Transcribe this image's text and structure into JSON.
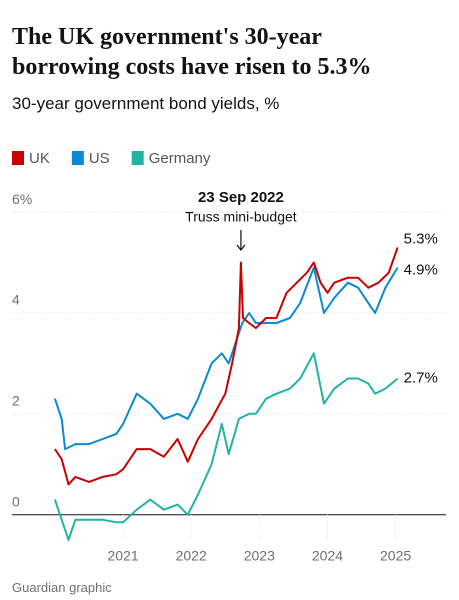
{
  "chart_data": {
    "type": "line",
    "title": "The UK government's 30-year borrowing costs have risen to 5.3%",
    "subtitle": "30-year government bond yields, %",
    "source": "Guardian graphic",
    "annotation": {
      "x": 2022.73,
      "title": "23 Sep 2022",
      "text": "Truss mini-budget"
    },
    "xlim": [
      2019.37,
      2025.74
    ],
    "xticks": [
      2021,
      2022,
      2023,
      2024,
      2025
    ],
    "ylim": [
      -0.7,
      6.2
    ],
    "yticks": [
      0,
      2,
      4,
      {
        "value": 6,
        "label": "6%"
      }
    ],
    "grid": true,
    "series": [
      {
        "name": "UK",
        "color": "#c70000",
        "end_label": "5.3%",
        "x": [
          2020.0,
          2020.1,
          2020.2,
          2020.3,
          2020.5,
          2020.7,
          2020.9,
          2021.0,
          2021.2,
          2021.4,
          2021.6,
          2021.8,
          2021.95,
          2022.1,
          2022.3,
          2022.5,
          2022.6,
          2022.7,
          2022.73,
          2022.76,
          2022.85,
          2022.95,
          2023.1,
          2023.25,
          2023.4,
          2023.55,
          2023.7,
          2023.8,
          2023.9,
          2024.0,
          2024.1,
          2024.3,
          2024.45,
          2024.6,
          2024.75,
          2024.9,
          2025.03
        ],
        "values": [
          1.3,
          1.1,
          0.6,
          0.75,
          0.65,
          0.75,
          0.8,
          0.9,
          1.3,
          1.3,
          1.15,
          1.5,
          1.05,
          1.5,
          1.9,
          2.4,
          3.0,
          3.7,
          5.0,
          3.9,
          3.8,
          3.7,
          3.9,
          3.9,
          4.4,
          4.6,
          4.8,
          5.0,
          4.6,
          4.4,
          4.6,
          4.7,
          4.7,
          4.5,
          4.6,
          4.8,
          5.3
        ]
      },
      {
        "name": "US",
        "color": "#0a8ad4",
        "end_label": "4.9%",
        "x": [
          2020.0,
          2020.1,
          2020.15,
          2020.3,
          2020.5,
          2020.7,
          2020.9,
          2021.0,
          2021.2,
          2021.4,
          2021.6,
          2021.8,
          2021.95,
          2022.1,
          2022.3,
          2022.45,
          2022.55,
          2022.75,
          2022.85,
          2022.95,
          2023.1,
          2023.25,
          2023.45,
          2023.6,
          2023.8,
          2023.95,
          2024.1,
          2024.3,
          2024.45,
          2024.6,
          2024.7,
          2024.85,
          2025.03
        ],
        "values": [
          2.3,
          1.9,
          1.3,
          1.4,
          1.4,
          1.5,
          1.6,
          1.8,
          2.4,
          2.2,
          1.9,
          2.0,
          1.9,
          2.3,
          3.0,
          3.2,
          3.0,
          3.8,
          4.0,
          3.8,
          3.8,
          3.8,
          3.9,
          4.2,
          4.9,
          4.0,
          4.3,
          4.6,
          4.5,
          4.2,
          4.0,
          4.5,
          4.9
        ]
      },
      {
        "name": "Germany",
        "color": "#22b3a6",
        "end_label": "2.7%",
        "x": [
          2020.0,
          2020.1,
          2020.2,
          2020.3,
          2020.5,
          2020.7,
          2020.9,
          2021.0,
          2021.2,
          2021.4,
          2021.6,
          2021.8,
          2021.95,
          2022.1,
          2022.3,
          2022.45,
          2022.55,
          2022.7,
          2022.85,
          2022.95,
          2023.1,
          2023.25,
          2023.45,
          2023.6,
          2023.8,
          2023.95,
          2024.1,
          2024.3,
          2024.45,
          2024.6,
          2024.7,
          2024.85,
          2025.03
        ],
        "values": [
          0.3,
          -0.1,
          -0.5,
          -0.1,
          -0.1,
          -0.1,
          -0.15,
          -0.15,
          0.1,
          0.3,
          0.1,
          0.2,
          0.0,
          0.4,
          1.0,
          1.8,
          1.2,
          1.9,
          2.0,
          2.0,
          2.3,
          2.4,
          2.5,
          2.7,
          3.2,
          2.2,
          2.5,
          2.7,
          2.7,
          2.6,
          2.4,
          2.5,
          2.7
        ]
      }
    ]
  }
}
